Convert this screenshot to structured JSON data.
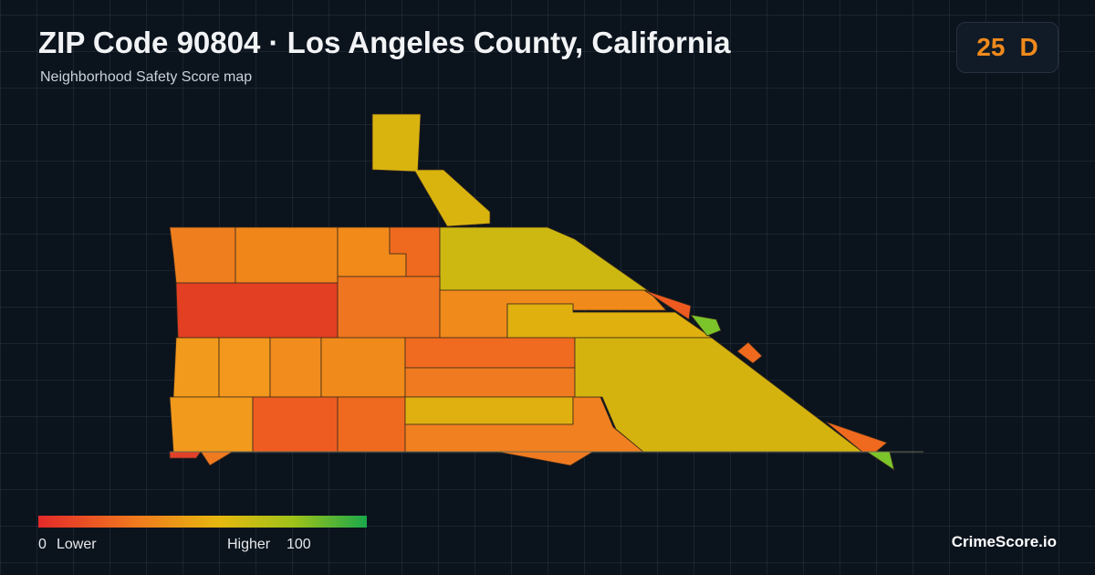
{
  "header": {
    "title": "ZIP Code 90804 · Los Angeles County, California",
    "subtitle": "Neighborhood Safety Score map"
  },
  "badge": {
    "score": 25,
    "grade": "D"
  },
  "legend": {
    "min": 0,
    "low_label": "Lower",
    "high_label": "Higher",
    "max": 100
  },
  "footer": {
    "brand": "CrimeScore.io"
  }
}
